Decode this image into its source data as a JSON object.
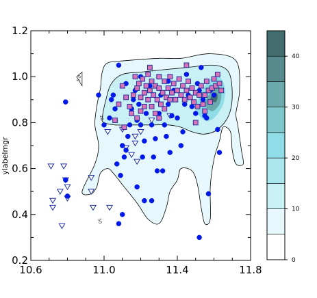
{
  "chart_data": {
    "type": "scatter",
    "title": "",
    "xlabel": "",
    "ylabel": "ylabelmgr",
    "xlim": [
      10.6,
      11.8
    ],
    "ylim": [
      0.2,
      1.2
    ],
    "xticks": [
      "10.6",
      "11.0",
      "11.4",
      "11.8"
    ],
    "yticks": [
      "0.2",
      "0.4",
      "0.6",
      "0.8",
      "1.0",
      "1.2"
    ],
    "grid": false,
    "colorbar": {
      "min": 0,
      "max": 45,
      "levels": [
        0,
        5,
        10,
        15,
        20,
        25,
        30,
        35,
        40,
        45
      ],
      "tick_labels": [
        "0",
        "10",
        "20",
        "30",
        "40"
      ],
      "colors": [
        "#ffffff",
        "#e6f8fb",
        "#c9f0f5",
        "#a9e6ee",
        "#8fdde6",
        "#7fc6cc",
        "#6aa9ac",
        "#568a8c",
        "#426c6d",
        "#2f4f50"
      ]
    },
    "contour_labels": [
      "5.0",
      "20",
      "50"
    ],
    "contours": [
      {
        "level": 5,
        "points": [
          [
            10.96,
            0.87
          ],
          [
            10.98,
            0.95
          ],
          [
            10.99,
            1.02
          ],
          [
            11.02,
            1.06
          ],
          [
            11.12,
            1.07
          ],
          [
            11.3,
            1.08
          ],
          [
            11.42,
            1.08
          ],
          [
            11.58,
            1.1
          ],
          [
            11.72,
            1.07
          ],
          [
            11.74,
            0.94
          ],
          [
            11.72,
            0.84
          ],
          [
            11.73,
            0.79
          ],
          [
            11.75,
            0.68
          ],
          [
            11.76,
            0.62
          ],
          [
            11.72,
            0.62
          ],
          [
            11.7,
            0.68
          ],
          [
            11.69,
            0.76
          ],
          [
            11.65,
            0.78
          ],
          [
            11.63,
            0.72
          ],
          [
            11.6,
            0.64
          ],
          [
            11.58,
            0.52
          ],
          [
            11.58,
            0.38
          ],
          [
            11.55,
            0.36
          ],
          [
            11.53,
            0.43
          ],
          [
            11.51,
            0.53
          ],
          [
            11.48,
            0.59
          ],
          [
            11.42,
            0.6
          ],
          [
            11.4,
            0.55
          ],
          [
            11.36,
            0.5
          ],
          [
            11.34,
            0.43
          ],
          [
            11.3,
            0.36
          ],
          [
            11.24,
            0.38
          ],
          [
            11.18,
            0.45
          ],
          [
            11.1,
            0.53
          ],
          [
            11.05,
            0.58
          ],
          [
            11.02,
            0.6
          ],
          [
            10.98,
            0.58
          ],
          [
            10.96,
            0.52
          ],
          [
            10.93,
            0.49
          ],
          [
            10.88,
            0.5
          ],
          [
            10.95,
            0.62
          ],
          [
            10.97,
            0.7
          ],
          [
            10.95,
            0.79
          ]
        ]
      },
      {
        "level": 10,
        "points": [
          [
            10.99,
            0.82
          ],
          [
            11.01,
            0.9
          ],
          [
            11.04,
            0.97
          ],
          [
            11.1,
            1.01
          ],
          [
            11.2,
            1.02
          ],
          [
            11.32,
            1.03
          ],
          [
            11.45,
            1.04
          ],
          [
            11.6,
            1.05
          ],
          [
            11.68,
            1.02
          ],
          [
            11.7,
            0.92
          ],
          [
            11.68,
            0.83
          ],
          [
            11.62,
            0.77
          ],
          [
            11.55,
            0.75
          ],
          [
            11.48,
            0.76
          ],
          [
            11.42,
            0.78
          ],
          [
            11.35,
            0.79
          ],
          [
            11.25,
            0.79
          ],
          [
            11.15,
            0.79
          ],
          [
            11.06,
            0.79
          ],
          [
            11.0,
            0.8
          ]
        ]
      },
      {
        "level": 20,
        "points": [
          [
            11.5,
            0.86
          ],
          [
            11.53,
            0.93
          ],
          [
            11.58,
            0.99
          ],
          [
            11.63,
            1.0
          ],
          [
            11.66,
            0.95
          ],
          [
            11.65,
            0.88
          ],
          [
            11.6,
            0.82
          ],
          [
            11.55,
            0.81
          ]
        ]
      },
      {
        "level": 30,
        "points": [
          [
            11.55,
            0.88
          ],
          [
            11.58,
            0.93
          ],
          [
            11.62,
            0.96
          ],
          [
            11.64,
            0.93
          ],
          [
            11.63,
            0.88
          ],
          [
            11.59,
            0.85
          ]
        ]
      },
      {
        "level": 40,
        "points": [
          [
            11.58,
            0.9
          ],
          [
            11.6,
            0.93
          ],
          [
            11.62,
            0.92
          ],
          [
            11.61,
            0.89
          ]
        ]
      }
    ],
    "series": [
      {
        "marker": "triangle-down",
        "color": "#ffffff",
        "edgecolor": "#1f2fa0",
        "points": [
          [
            10.71,
            0.61
          ],
          [
            10.72,
            0.46
          ],
          [
            10.72,
            0.43
          ],
          [
            10.76,
            0.5
          ],
          [
            10.77,
            0.35
          ],
          [
            10.78,
            0.61
          ],
          [
            10.79,
            0.55
          ],
          [
            10.8,
            0.52
          ],
          [
            10.8,
            0.47
          ],
          [
            10.93,
            0.56
          ],
          [
            10.93,
            0.5
          ],
          [
            10.94,
            0.43
          ],
          [
            11.02,
            0.76
          ],
          [
            11.03,
            0.43
          ],
          [
            11.1,
            0.77
          ],
          [
            11.12,
            0.69
          ],
          [
            11.15,
            0.66
          ],
          [
            11.17,
            0.71
          ],
          [
            11.17,
            0.74
          ],
          [
            11.18,
            0.63
          ],
          [
            11.2,
            0.76
          ],
          [
            11.26,
            0.81
          ],
          [
            11.36,
            0.83
          ]
        ]
      },
      {
        "marker": "circle",
        "color": "#0018e8",
        "edgecolor": "#0018e8",
        "points": [
          [
            10.79,
            0.89
          ],
          [
            10.79,
            0.55
          ],
          [
            10.8,
            0.48
          ],
          [
            10.97,
            0.92
          ],
          [
            11.0,
            0.79
          ],
          [
            11.03,
            0.82
          ],
          [
            11.04,
            0.9
          ],
          [
            11.05,
            0.92
          ],
          [
            11.06,
            0.86
          ],
          [
            11.07,
            0.62
          ],
          [
            11.08,
            0.36
          ],
          [
            11.09,
            0.57
          ],
          [
            11.1,
            0.4
          ],
          [
            11.1,
            0.7
          ],
          [
            11.11,
            0.65
          ],
          [
            11.12,
            0.68
          ],
          [
            11.13,
            0.74
          ],
          [
            11.14,
            0.79
          ],
          [
            11.15,
            0.86
          ],
          [
            11.16,
            0.9
          ],
          [
            11.17,
            0.94
          ],
          [
            11.18,
            0.81
          ],
          [
            11.18,
            0.52
          ],
          [
            11.19,
            0.88
          ],
          [
            11.2,
            0.79
          ],
          [
            11.21,
            0.65
          ],
          [
            11.22,
            0.46
          ],
          [
            11.22,
            0.72
          ],
          [
            11.23,
            0.84
          ],
          [
            11.24,
            0.9
          ],
          [
            11.25,
            0.96
          ],
          [
            11.26,
            0.79
          ],
          [
            11.26,
            0.46
          ],
          [
            11.27,
            0.65
          ],
          [
            11.28,
            0.73
          ],
          [
            11.29,
            0.59
          ],
          [
            11.3,
            0.84
          ],
          [
            11.31,
            0.92
          ],
          [
            11.32,
            0.59
          ],
          [
            11.33,
            0.79
          ],
          [
            11.34,
            0.74
          ],
          [
            11.35,
            0.88
          ],
          [
            11.36,
            0.67
          ],
          [
            11.37,
            0.83
          ],
          [
            11.38,
            0.94
          ],
          [
            11.4,
            0.82
          ],
          [
            11.42,
            0.7
          ],
          [
            11.43,
            0.76
          ],
          [
            11.44,
            0.88
          ],
          [
            11.45,
            1.01
          ],
          [
            11.46,
            0.92
          ],
          [
            11.48,
            0.87
          ],
          [
            11.5,
            0.84
          ],
          [
            11.51,
            0.97
          ],
          [
            11.52,
            0.94
          ],
          [
            11.53,
            1.04
          ],
          [
            11.54,
            0.9
          ],
          [
            11.55,
            0.83
          ],
          [
            11.56,
            0.82
          ],
          [
            11.57,
            0.49
          ],
          [
            11.58,
            0.94
          ],
          [
            11.6,
            0.92
          ],
          [
            11.62,
            0.77
          ],
          [
            11.63,
            0.67
          ],
          [
            11.52,
            0.3
          ],
          [
            11.08,
            1.05
          ],
          [
            11.12,
            0.97
          ],
          [
            11.2,
            1.0
          ],
          [
            11.35,
            0.98
          ]
        ]
      },
      {
        "marker": "square",
        "color": "#d973b8",
        "edgecolor": "#2a2f9a",
        "points": [
          [
            11.06,
            0.81
          ],
          [
            11.08,
            0.88
          ],
          [
            11.1,
            0.96
          ],
          [
            11.12,
            0.91
          ],
          [
            11.14,
            0.87
          ],
          [
            11.15,
            0.84
          ],
          [
            11.16,
            0.92
          ],
          [
            11.17,
            1.0
          ],
          [
            11.18,
            0.95
          ],
          [
            11.19,
            0.97
          ],
          [
            11.2,
            0.91
          ],
          [
            11.2,
            0.85
          ],
          [
            11.21,
            0.99
          ],
          [
            11.22,
            0.93
          ],
          [
            11.22,
            0.87
          ],
          [
            11.23,
            0.96
          ],
          [
            11.24,
            1.01
          ],
          [
            11.24,
            0.9
          ],
          [
            11.25,
            0.94
          ],
          [
            11.26,
            0.98
          ],
          [
            11.26,
            0.87
          ],
          [
            11.27,
            0.92
          ],
          [
            11.28,
            0.96
          ],
          [
            11.28,
            0.84
          ],
          [
            11.29,
            0.9
          ],
          [
            11.3,
            1.0
          ],
          [
            11.3,
            0.95
          ],
          [
            11.31,
            0.88
          ],
          [
            11.32,
            0.93
          ],
          [
            11.33,
            0.98
          ],
          [
            11.33,
            0.86
          ],
          [
            11.34,
            0.91
          ],
          [
            11.35,
            0.95
          ],
          [
            11.36,
            1.0
          ],
          [
            11.37,
            0.93
          ],
          [
            11.38,
            0.97
          ],
          [
            11.39,
            0.9
          ],
          [
            11.4,
            0.94
          ],
          [
            11.41,
            0.99
          ],
          [
            11.42,
            0.92
          ],
          [
            11.43,
            0.96
          ],
          [
            11.44,
            0.9
          ],
          [
            11.45,
            0.94
          ],
          [
            11.46,
            0.98
          ],
          [
            11.47,
            0.91
          ],
          [
            11.48,
            0.95
          ],
          [
            11.49,
            0.89
          ],
          [
            11.5,
            0.93
          ],
          [
            11.51,
            0.87
          ],
          [
            11.52,
            0.92
          ],
          [
            11.53,
            0.96
          ],
          [
            11.54,
            0.88
          ],
          [
            11.55,
            0.92
          ],
          [
            11.56,
            0.98
          ],
          [
            11.57,
            0.94
          ],
          [
            11.58,
            0.89
          ],
          [
            11.59,
            0.95
          ],
          [
            11.6,
            0.99
          ],
          [
            11.61,
            0.96
          ],
          [
            11.62,
            1.01
          ],
          [
            11.63,
            0.97
          ],
          [
            11.64,
            0.94
          ],
          [
            11.5,
            0.8
          ],
          [
            11.55,
            0.85
          ],
          [
            11.45,
            1.05
          ],
          [
            11.18,
            0.82
          ],
          [
            11.11,
            0.78
          ],
          [
            11.36,
            0.9
          ],
          [
            11.3,
            0.82
          ],
          [
            11.25,
            1.04
          ]
        ]
      }
    ]
  }
}
